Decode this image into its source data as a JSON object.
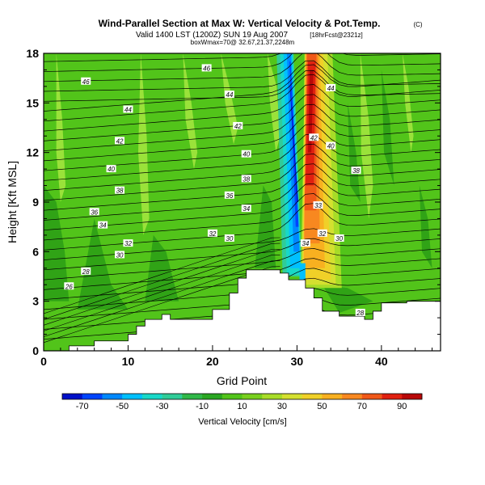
{
  "header": {
    "title": "Wind-Parallel Section at Max W: Vertical Velocity & Pot.Temp.",
    "copyright": "(C)",
    "valid_line": "Valid 1400 LST (1200Z) SUN 19 Aug 2007",
    "forecast_tag": "[18hrFcst@2321z]",
    "box_line": "boxWmax=70@ 32.67,21.37,2248m"
  },
  "colors": {
    "background_field": "#52c41a",
    "light_green": "#9ae23a",
    "dark_green": "#2a9e16",
    "terrain": "#ffffff"
  },
  "chart_data": {
    "type": "heatmap",
    "title": "Wind-Parallel Section at Max W: Vertical Velocity & Pot.Temp.",
    "xlabel": "Grid Point",
    "ylabel": "Height [Kft MSL]",
    "xlim": [
      0,
      47
    ],
    "ylim": [
      0,
      18
    ],
    "x_ticks": [
      0,
      10,
      20,
      30,
      40
    ],
    "y_ticks": [
      0,
      3,
      6,
      9,
      12,
      15,
      18
    ],
    "colorbar": {
      "title": "Vertical Velocity [cm/s]",
      "tick_labels": [
        -70,
        -50,
        -30,
        -10,
        10,
        30,
        50,
        70,
        90
      ],
      "range": [
        -80,
        100
      ],
      "colors": [
        "#0010c8",
        "#0044ff",
        "#0088ff",
        "#00c0ff",
        "#18d8c8",
        "#30cc98",
        "#30b848",
        "#2aa622",
        "#52c41a",
        "#78cf1e",
        "#a8dc28",
        "#d4e030",
        "#f0d028",
        "#f8b020",
        "#f88820",
        "#f05818",
        "#e02010",
        "#b80808"
      ]
    },
    "terrain": [
      [
        0,
        0
      ],
      [
        3,
        0
      ],
      [
        3,
        0.3
      ],
      [
        6,
        0.3
      ],
      [
        6,
        0.6
      ],
      [
        10,
        0.6
      ],
      [
        10,
        1.0
      ],
      [
        11,
        1.0
      ],
      [
        11,
        1.5
      ],
      [
        12,
        1.5
      ],
      [
        12,
        1.9
      ],
      [
        14,
        1.9
      ],
      [
        14,
        2.2
      ],
      [
        15,
        2.2
      ],
      [
        15,
        1.9
      ],
      [
        20,
        1.9
      ],
      [
        20,
        2.5
      ],
      [
        22,
        2.5
      ],
      [
        22,
        3.5
      ],
      [
        23,
        3.5
      ],
      [
        23,
        4.4
      ],
      [
        24,
        4.4
      ],
      [
        24,
        4.9
      ],
      [
        28,
        4.9
      ],
      [
        28,
        4.7
      ],
      [
        29,
        4.7
      ],
      [
        29,
        4.3
      ],
      [
        31,
        4.3
      ],
      [
        31,
        3.8
      ],
      [
        32,
        3.8
      ],
      [
        32,
        3.2
      ],
      [
        33,
        3.2
      ],
      [
        33,
        2.4
      ],
      [
        35,
        2.4
      ],
      [
        35,
        2.1
      ],
      [
        38,
        2.1
      ],
      [
        38,
        1.9
      ],
      [
        39,
        1.9
      ],
      [
        39,
        2.4
      ],
      [
        40,
        2.4
      ],
      [
        40,
        2.9
      ],
      [
        43,
        2.9
      ],
      [
        43,
        3.0
      ],
      [
        47,
        3.0
      ],
      [
        47,
        0
      ],
      [
        0,
        0
      ]
    ],
    "updraft_core": {
      "x_center_low": 33,
      "x_center_high": 31.5,
      "max_value": 70
    },
    "downdraft_core": {
      "x_center_low": 30.5,
      "x_center_high": 29.5,
      "min_value": -70
    },
    "contour_labels": [
      {
        "text": "46",
        "x": 5,
        "y": 16.3
      },
      {
        "text": "46",
        "x": 19.3,
        "y": 17.1
      },
      {
        "text": "44",
        "x": 10,
        "y": 14.6
      },
      {
        "text": "44",
        "x": 22,
        "y": 15.5
      },
      {
        "text": "44",
        "x": 34,
        "y": 15.9
      },
      {
        "text": "42",
        "x": 9,
        "y": 12.7
      },
      {
        "text": "42",
        "x": 23,
        "y": 13.6
      },
      {
        "text": "42",
        "x": 32,
        "y": 12.9
      },
      {
        "text": "40",
        "x": 8,
        "y": 11.0
      },
      {
        "text": "40",
        "x": 24,
        "y": 11.9
      },
      {
        "text": "40",
        "x": 34,
        "y": 12.4
      },
      {
        "text": "38",
        "x": 9,
        "y": 9.7
      },
      {
        "text": "38",
        "x": 24,
        "y": 10.4
      },
      {
        "text": "38",
        "x": 37,
        "y": 10.9
      },
      {
        "text": "36",
        "x": 6,
        "y": 8.4
      },
      {
        "text": "36",
        "x": 22,
        "y": 9.4
      },
      {
        "text": "34",
        "x": 7,
        "y": 7.6
      },
      {
        "text": "34",
        "x": 24,
        "y": 8.6
      },
      {
        "text": "34",
        "x": 31,
        "y": 6.5
      },
      {
        "text": "33",
        "x": 32.5,
        "y": 8.8
      },
      {
        "text": "32",
        "x": 10,
        "y": 6.5
      },
      {
        "text": "32",
        "x": 20,
        "y": 7.1
      },
      {
        "text": "32",
        "x": 33,
        "y": 7.1
      },
      {
        "text": "30",
        "x": 9,
        "y": 5.8
      },
      {
        "text": "30",
        "x": 22,
        "y": 6.8
      },
      {
        "text": "30",
        "x": 35,
        "y": 6.8
      },
      {
        "text": "28",
        "x": 5,
        "y": 4.8
      },
      {
        "text": "28",
        "x": 37.5,
        "y": 2.3
      },
      {
        "text": "26",
        "x": 3,
        "y": 3.9
      }
    ]
  }
}
